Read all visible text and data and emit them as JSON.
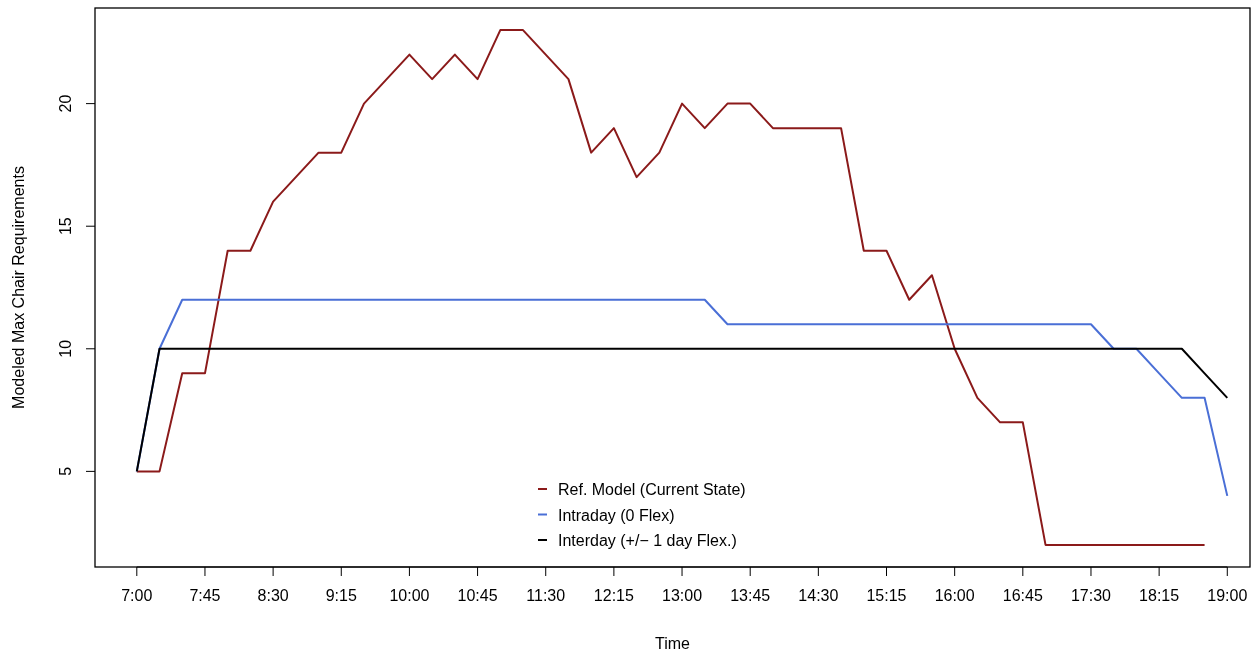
{
  "chart_data": {
    "type": "line",
    "xlabel": "Time",
    "ylabel": "Modeled Max Chair Requirements",
    "xlim": [
      6.54,
      19.25
    ],
    "ylim": [
      1.1,
      23.9
    ],
    "xticks": [
      {
        "value": 7,
        "label": "7:00"
      },
      {
        "value": 7.75,
        "label": "7:45"
      },
      {
        "value": 8.5,
        "label": "8:30"
      },
      {
        "value": 9.25,
        "label": "9:15"
      },
      {
        "value": 10,
        "label": "10:00"
      },
      {
        "value": 10.75,
        "label": "10:45"
      },
      {
        "value": 11.5,
        "label": "11:30"
      },
      {
        "value": 12.25,
        "label": "12:15"
      },
      {
        "value": 13,
        "label": "13:00"
      },
      {
        "value": 13.75,
        "label": "13:45"
      },
      {
        "value": 14.5,
        "label": "14:30"
      },
      {
        "value": 15.25,
        "label": "15:15"
      },
      {
        "value": 16,
        "label": "16:00"
      },
      {
        "value": 16.75,
        "label": "16:45"
      },
      {
        "value": 17.5,
        "label": "17:30"
      },
      {
        "value": 18.25,
        "label": "18:15"
      },
      {
        "value": 19,
        "label": "19:00"
      }
    ],
    "yticks": [
      5,
      10,
      15,
      20
    ],
    "legend": "bottom",
    "marker": "none",
    "line_style": "solid",
    "grid": false,
    "series": [
      {
        "name": "Ref. Model (Current State)",
        "color": "#8b1a1a",
        "x": [
          7,
          7.25,
          7.5,
          7.75,
          8,
          8.25,
          8.5,
          8.75,
          9,
          9.25,
          9.5,
          9.75,
          10,
          10.25,
          10.5,
          10.75,
          11,
          11.25,
          11.5,
          11.75,
          12,
          12.25,
          12.5,
          12.75,
          13,
          13.25,
          13.5,
          13.75,
          14,
          14.25,
          14.5,
          14.75,
          15,
          15.25,
          15.5,
          15.75,
          16,
          16.25,
          16.5,
          16.75,
          17,
          17.25,
          17.5,
          17.75,
          18,
          18.25,
          18.5,
          18.75
        ],
        "values": [
          5,
          5,
          9,
          9,
          14,
          14,
          16,
          17,
          18,
          18,
          20,
          21,
          22,
          21,
          22,
          21,
          23,
          23,
          22,
          21,
          18,
          19,
          17,
          18,
          20,
          19,
          20,
          20,
          19,
          19,
          19,
          19,
          14,
          14,
          12,
          13,
          10,
          8,
          7,
          7,
          2,
          2,
          2,
          2,
          2,
          2,
          2,
          2
        ]
      },
      {
        "name": "Intraday (0 Flex)",
        "color": "#4a6fd6",
        "x": [
          7,
          7.25,
          7.5,
          7.75,
          8,
          8.25,
          8.5,
          8.75,
          9,
          9.25,
          9.5,
          9.75,
          10,
          10.25,
          10.5,
          10.75,
          11,
          11.25,
          11.5,
          11.75,
          12,
          12.25,
          12.5,
          12.75,
          13,
          13.25,
          13.5,
          13.75,
          14,
          14.25,
          14.5,
          14.75,
          15,
          15.25,
          15.5,
          15.75,
          16,
          16.25,
          16.5,
          16.75,
          17,
          17.25,
          17.5,
          17.75,
          18,
          18.25,
          18.5,
          18.75,
          19
        ],
        "values": [
          5,
          10,
          12,
          12,
          12,
          12,
          12,
          12,
          12,
          12,
          12,
          12,
          12,
          12,
          12,
          12,
          12,
          12,
          12,
          12,
          12,
          12,
          12,
          12,
          12,
          12,
          11,
          11,
          11,
          11,
          11,
          11,
          11,
          11,
          11,
          11,
          11,
          11,
          11,
          11,
          11,
          11,
          11,
          10,
          10,
          9,
          8,
          8,
          4
        ]
      },
      {
        "name": "Interday (+/− 1 day Flex.)",
        "color": "#000000",
        "x": [
          7,
          7.25,
          7.5,
          7.75,
          8,
          8.25,
          8.5,
          8.75,
          9,
          9.25,
          9.5,
          9.75,
          10,
          10.25,
          10.5,
          10.75,
          11,
          11.25,
          11.5,
          11.75,
          12,
          12.25,
          12.5,
          12.75,
          13,
          13.25,
          13.5,
          13.75,
          14,
          14.25,
          14.5,
          14.75,
          15,
          15.25,
          15.5,
          15.75,
          16,
          16.25,
          16.5,
          16.75,
          17,
          17.25,
          17.5,
          17.75,
          18,
          18.25,
          18.5,
          18.75,
          19
        ],
        "values": [
          5,
          10,
          10,
          10,
          10,
          10,
          10,
          10,
          10,
          10,
          10,
          10,
          10,
          10,
          10,
          10,
          10,
          10,
          10,
          10,
          10,
          10,
          10,
          10,
          10,
          10,
          10,
          10,
          10,
          10,
          10,
          10,
          10,
          10,
          10,
          10,
          10,
          10,
          10,
          10,
          10,
          10,
          10,
          10,
          10,
          10,
          10,
          9,
          8
        ]
      }
    ]
  }
}
